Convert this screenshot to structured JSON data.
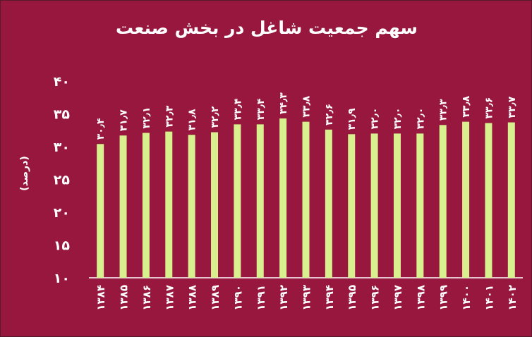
{
  "chart_data": {
    "type": "bar",
    "title": "سهم جمعیت شاغل در بخش صنعت",
    "ylabel": "(درصد)",
    "xlabel": "",
    "ylim": [
      10,
      40
    ],
    "yticks": [
      "۱۰",
      "۱۵",
      "۲۰",
      "۲۵",
      "۳۰",
      "۳۵",
      "۴۰"
    ],
    "yticks_values": [
      10,
      15,
      20,
      25,
      30,
      35,
      40
    ],
    "categories": [
      "۱۳۸۴",
      "۱۳۸۵",
      "۱۳۸۶",
      "۱۳۸۷",
      "۱۳۸۸",
      "۱۳۸۹",
      "۱۳۹۰",
      "۱۳۹۱",
      "۱۳۹۲",
      "۱۳۹۳",
      "۱۳۹۴",
      "۱۳۹۵",
      "۱۳۹۶",
      "۱۳۹۷",
      "۱۳۹۸",
      "۱۳۹۹",
      "۱۴۰۰",
      "۱۴۰۱",
      "۱۴۰۲"
    ],
    "values": [
      30.4,
      31.7,
      32.1,
      32.3,
      31.8,
      32.2,
      33.4,
      33.4,
      34.3,
      33.8,
      32.6,
      31.9,
      32.0,
      32.0,
      32.0,
      33.3,
      33.8,
      33.6,
      33.7
    ],
    "data_labels": [
      "۳۰٫۴",
      "۳۱٫۷",
      "۳۲٫۱",
      "۳۲٫۳",
      "۳۱٫۸",
      "۳۲٫۲",
      "۳۳٫۴",
      "۳۳٫۴",
      "۳۴٫۳",
      "۳۳٫۸",
      "۳۲٫۶",
      "۳۱٫۹",
      "۳۲٫۰",
      "۳۲٫۰",
      "۳۲٫۰",
      "۳۳٫۳",
      "۳۳٫۸",
      "۳۳٫۶",
      "۳۳٫۷"
    ],
    "grid": false,
    "legend": "none"
  },
  "colors": {
    "background": "#97173f",
    "bar": "#d9f08f",
    "text": "#ffffff",
    "axis": "#ffffff"
  }
}
